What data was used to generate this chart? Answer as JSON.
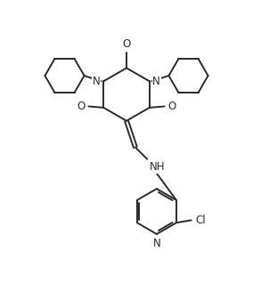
{
  "bg_color": "#ffffff",
  "line_color": "#2a2a2a",
  "line_width": 1.4,
  "font_size": 8.5,
  "fig_width": 2.84,
  "fig_height": 3.28,
  "xlim": [
    0,
    10
  ],
  "ylim": [
    0,
    11.5
  ]
}
